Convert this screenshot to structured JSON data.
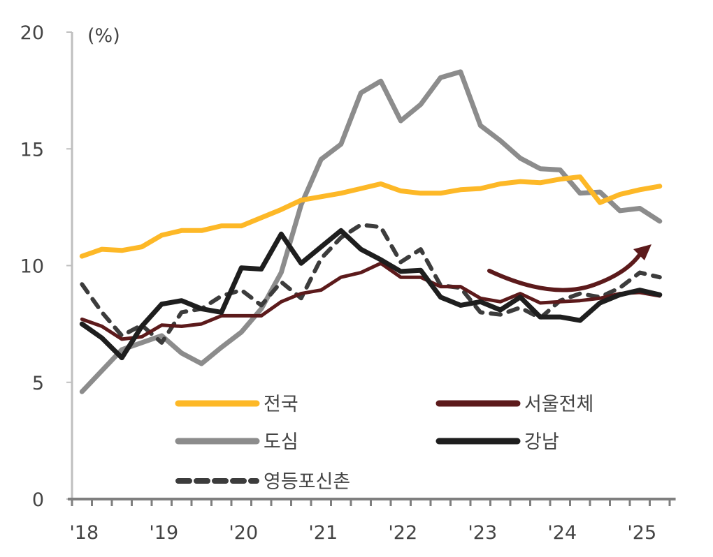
{
  "chart_data": {
    "type": "line",
    "unit_label": "(%)",
    "ylim": [
      0,
      20
    ],
    "yticks": [
      0,
      5,
      10,
      15,
      20
    ],
    "xtick_labels": [
      "'18",
      "'19",
      "'20",
      "'21",
      "'22",
      "'23",
      "'24",
      "'25"
    ],
    "x_frequency": "quarterly",
    "x_range": [
      "2018Q1",
      "2025Q2"
    ],
    "grid": false,
    "legend_placement": "bottom-center, inside plot",
    "series": [
      {
        "name": "전국",
        "color": "#FDB827",
        "style": "solid",
        "values": [
          10.4,
          10.7,
          10.65,
          10.8,
          11.3,
          11.5,
          11.5,
          11.7,
          11.7,
          12.05,
          12.4,
          12.8,
          12.95,
          13.1,
          13.3,
          13.5,
          13.2,
          13.1,
          13.1,
          13.25,
          13.3,
          13.5,
          13.6,
          13.55,
          13.7,
          13.8,
          12.7,
          13.05,
          13.25,
          13.4
        ]
      },
      {
        "name": "서울전체",
        "color": "#5C1A1B",
        "style": "solid",
        "values": [
          7.7,
          7.4,
          6.85,
          6.95,
          7.45,
          7.4,
          7.5,
          7.85,
          7.85,
          7.85,
          8.45,
          8.8,
          8.95,
          9.5,
          9.7,
          10.1,
          9.5,
          9.5,
          9.1,
          9.1,
          8.6,
          8.45,
          8.8,
          8.4,
          8.45,
          8.5,
          8.6,
          8.8,
          8.85,
          8.7
        ]
      },
      {
        "name": "도심",
        "color": "#8C8C8C",
        "style": "solid",
        "values": [
          4.6,
          5.5,
          6.4,
          6.7,
          7.0,
          6.25,
          5.8,
          6.5,
          7.15,
          8.15,
          9.7,
          12.6,
          14.55,
          15.2,
          17.4,
          17.9,
          16.2,
          16.9,
          18.05,
          18.3,
          16.0,
          15.35,
          14.6,
          14.15,
          14.1,
          13.1,
          13.15,
          12.35,
          12.45,
          11.9
        ]
      },
      {
        "name": "강남",
        "color": "#1E1E1E",
        "style": "solid",
        "values": [
          7.5,
          6.9,
          6.05,
          7.4,
          8.35,
          8.5,
          8.15,
          8.0,
          9.9,
          9.85,
          11.35,
          10.1,
          10.8,
          11.5,
          10.7,
          10.25,
          9.75,
          9.8,
          8.65,
          8.3,
          8.45,
          8.1,
          8.65,
          7.8,
          7.8,
          7.65,
          8.4,
          8.75,
          8.95,
          8.75
        ]
      },
      {
        "name": "영등포신촌",
        "color": "#3C3C3C",
        "style": "dashed",
        "values": [
          9.2,
          8.0,
          7.0,
          7.45,
          6.7,
          8.0,
          8.15,
          8.7,
          8.95,
          8.3,
          9.3,
          8.6,
          10.3,
          11.2,
          11.75,
          11.65,
          10.15,
          10.7,
          9.15,
          9.05,
          8.0,
          7.9,
          8.2,
          7.75,
          8.5,
          8.8,
          8.65,
          9.05,
          9.7,
          9.5
        ]
      }
    ],
    "annotations": [
      {
        "type": "trend-arrow",
        "color": "#5C1A1B",
        "direction": "upward",
        "from": "2023Q1",
        "to": "2025Q2"
      }
    ]
  }
}
